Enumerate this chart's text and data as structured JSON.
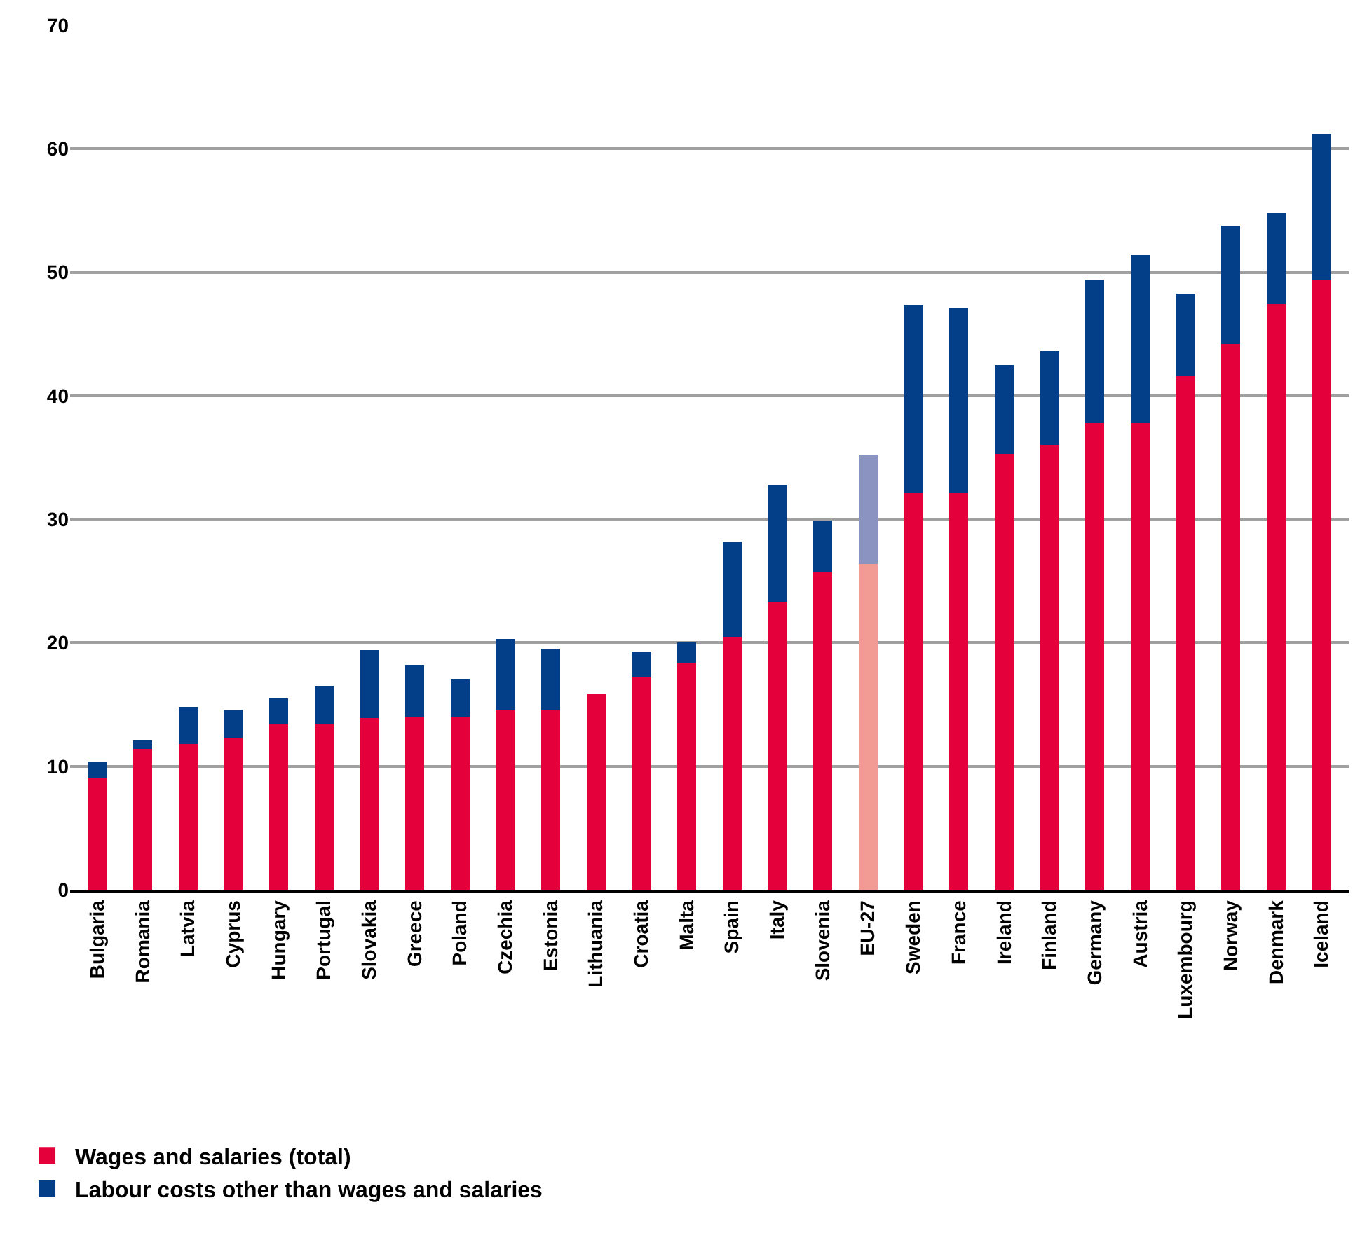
{
  "chart_data": {
    "type": "bar",
    "stacked": true,
    "categories": [
      "Bulgaria",
      "Romania",
      "Latvia",
      "Cyprus",
      "Hungary",
      "Portugal",
      "Slovakia",
      "Greece",
      "Poland",
      "Czechia",
      "Estonia",
      "Lithuania",
      "Croatia",
      "Malta",
      "Spain",
      "Italy",
      "Slovenia",
      "EU-27",
      "Sweden",
      "France",
      "Ireland",
      "Finland",
      "Germany",
      "Austria",
      "Luxembourg",
      "Norway",
      "Denmark",
      "Iceland"
    ],
    "series": [
      {
        "name": "Wages and salaries (total)",
        "color": "#e4003a",
        "colors": [
          "#e4003a",
          "#e4003a",
          "#e4003a",
          "#e4003a",
          "#e4003a",
          "#e4003a",
          "#e4003a",
          "#e4003a",
          "#e4003a",
          "#e4003a",
          "#e4003a",
          "#e4003a",
          "#e4003a",
          "#e4003a",
          "#e4003a",
          "#e4003a",
          "#e4003a",
          "#f29b94",
          "#e4003a",
          "#e4003a",
          "#e4003a",
          "#e4003a",
          "#e4003a",
          "#e4003a",
          "#e4003a",
          "#e4003a",
          "#e4003a",
          "#e4003a"
        ],
        "values": [
          9.0,
          11.4,
          11.8,
          12.3,
          13.4,
          13.4,
          13.9,
          14.0,
          14.0,
          14.6,
          14.6,
          15.8,
          17.2,
          18.4,
          20.5,
          23.3,
          25.7,
          26.4,
          32.1,
          32.1,
          35.3,
          36.0,
          37.8,
          37.8,
          41.6,
          44.2,
          47.4,
          49.4
        ]
      },
      {
        "name": "Labour costs other than wages and salaries",
        "color": "#033f88",
        "colors": [
          "#033f88",
          "#033f88",
          "#033f88",
          "#033f88",
          "#033f88",
          "#033f88",
          "#033f88",
          "#033f88",
          "#033f88",
          "#033f88",
          "#033f88",
          "#033f88",
          "#033f88",
          "#033f88",
          "#033f88",
          "#033f88",
          "#033f88",
          "#8b93c0",
          "#033f88",
          "#033f88",
          "#033f88",
          "#033f88",
          "#033f88",
          "#033f88",
          "#033f88",
          "#033f88",
          "#033f88",
          "#033f88"
        ],
        "values": [
          1.4,
          0.7,
          3.0,
          2.3,
          2.1,
          3.1,
          5.5,
          4.2,
          3.1,
          5.7,
          4.9,
          0.0,
          2.1,
          1.6,
          7.7,
          9.5,
          4.2,
          8.8,
          15.2,
          15.0,
          7.2,
          7.6,
          11.6,
          13.6,
          6.7,
          9.6,
          7.4,
          11.8
        ]
      }
    ],
    "ylim": [
      0,
      70
    ],
    "yticks": [
      0,
      10,
      20,
      30,
      40,
      50,
      60,
      70
    ],
    "grid": "y",
    "legend": "bottom left"
  }
}
